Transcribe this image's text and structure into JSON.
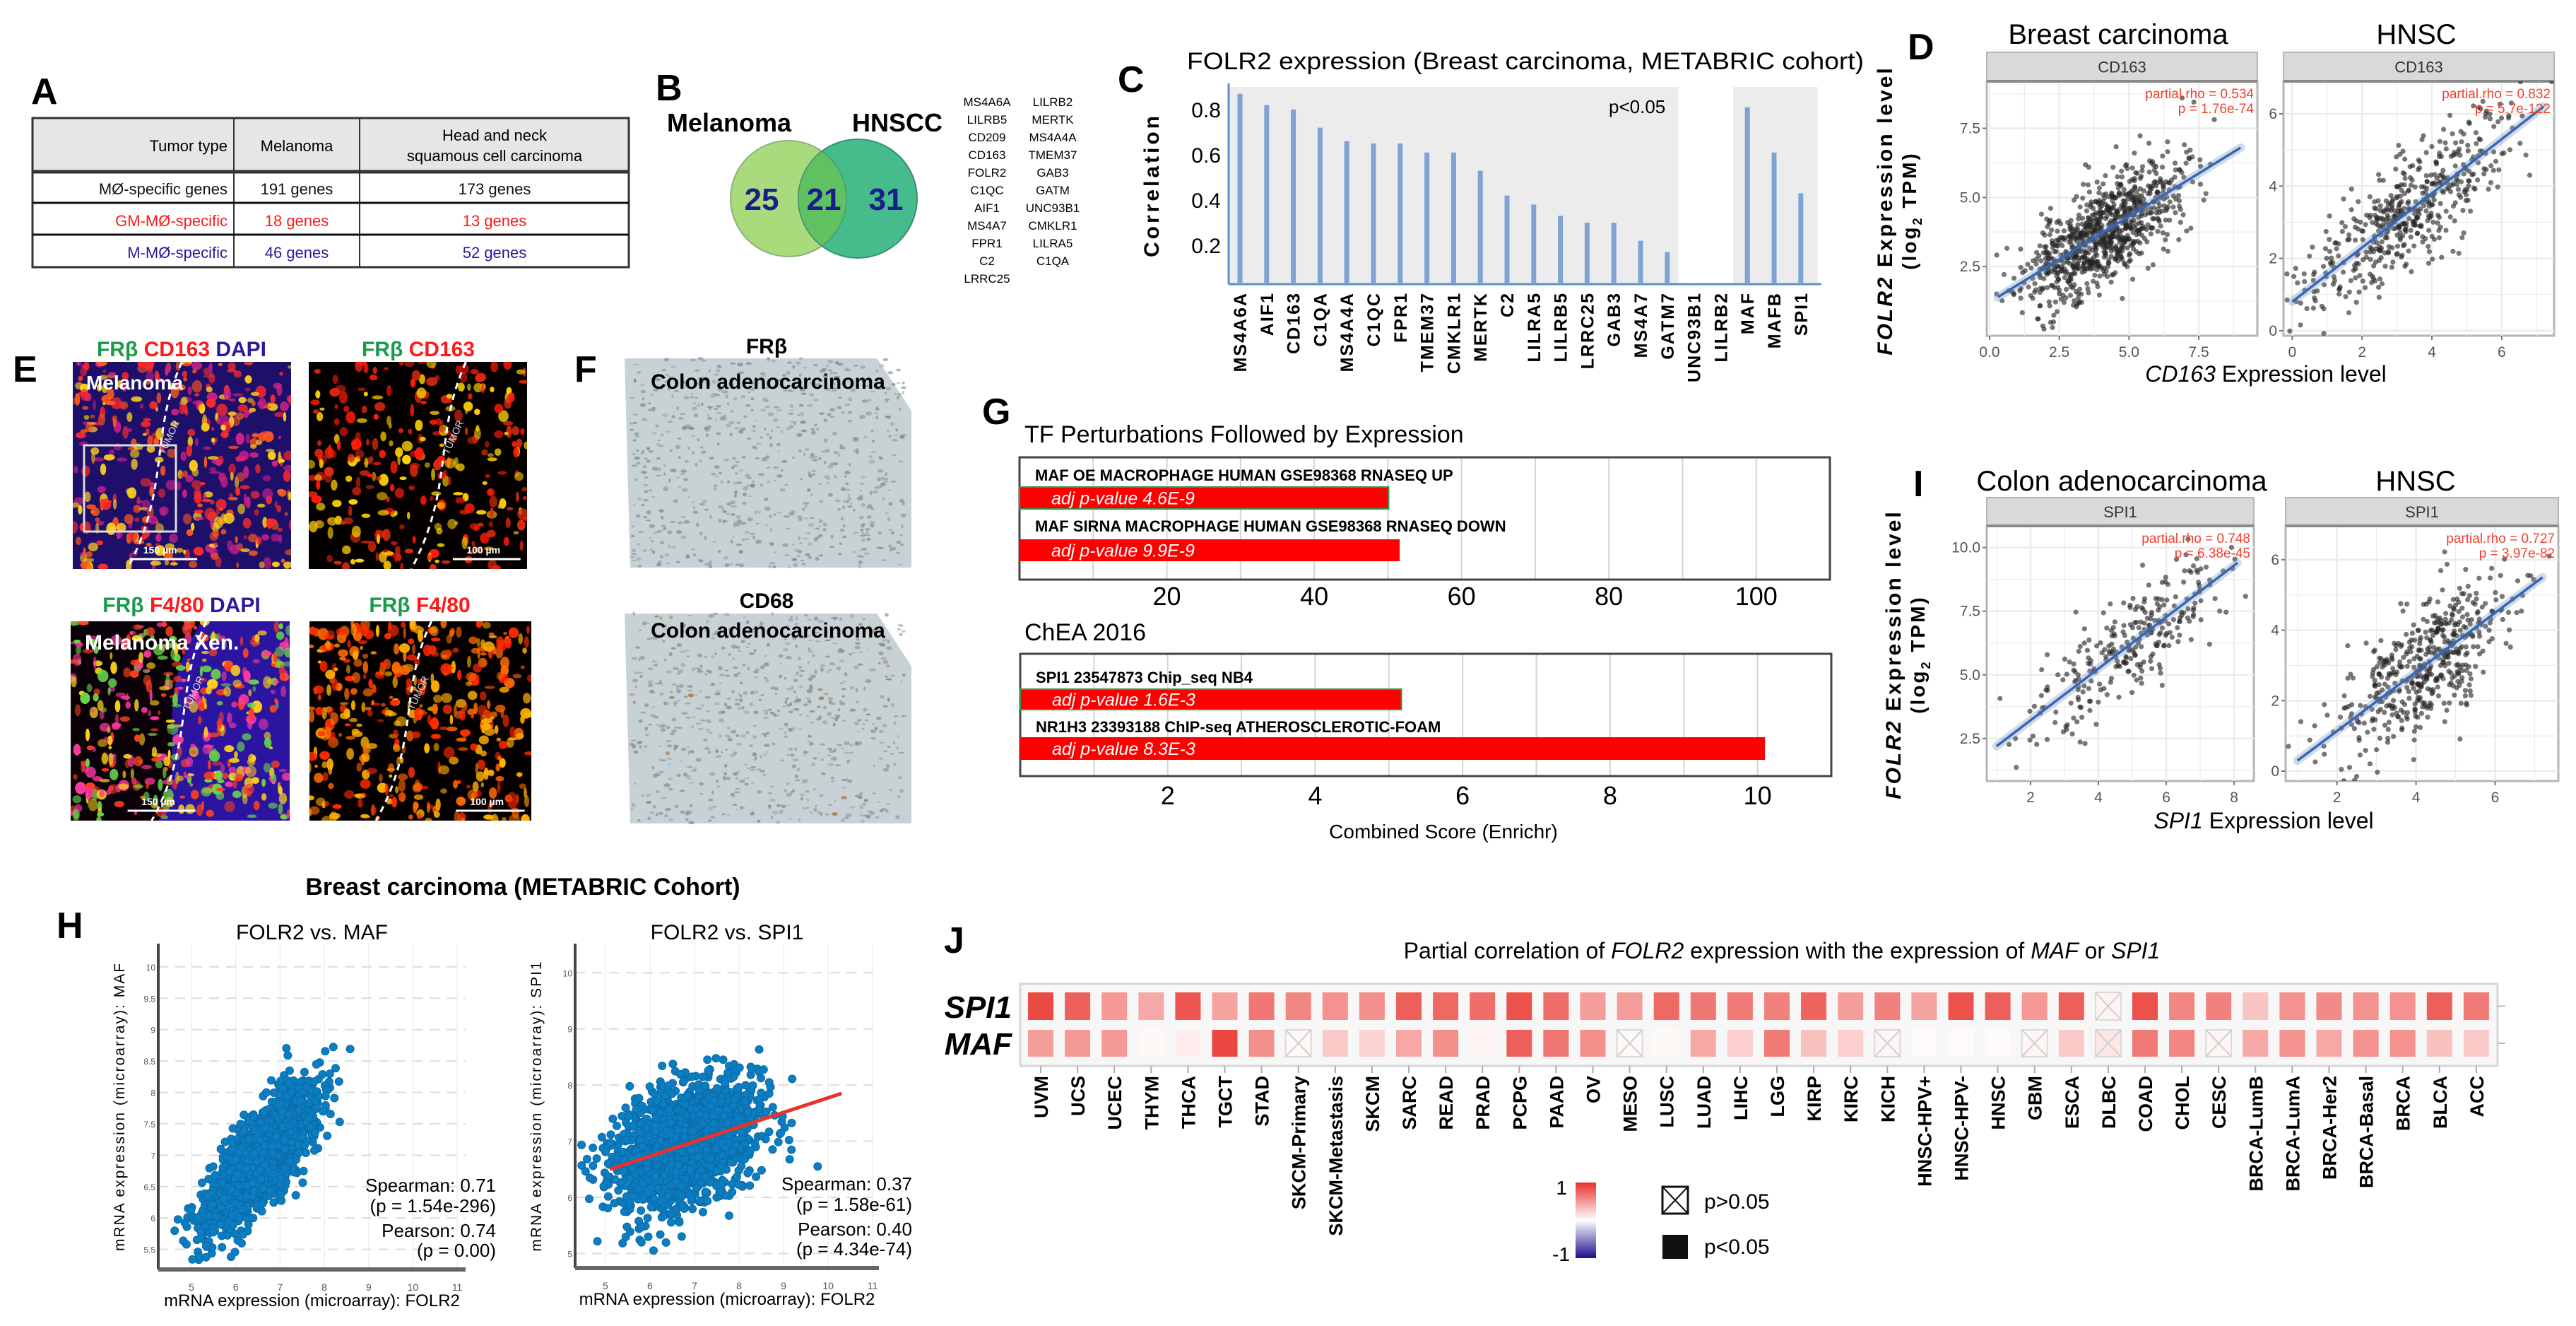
{
  "panel_labels": {
    "A": "A",
    "B": "B",
    "C": "C",
    "D": "D",
    "E": "E",
    "F": "F",
    "G": "G",
    "H": "H",
    "I": "I",
    "J": "J"
  },
  "table_a": {
    "headers": [
      "Tumor type",
      "Melanoma",
      "Head and neck",
      "squamous cell carcinoma"
    ],
    "rows": [
      {
        "label": "MØ-specific genes",
        "melanoma": "191 genes",
        "hnscc": "173 genes",
        "color": "#111111"
      },
      {
        "label": "GM-MØ-specific",
        "melanoma": "18 genes",
        "hnscc": "13 genes",
        "color": "#ff1a1a"
      },
      {
        "label": "M-MØ-specific",
        "melanoma": "46 genes",
        "hnscc": "52 genes",
        "color": "#2a1a99"
      }
    ]
  },
  "venn": {
    "left_label": "Melanoma",
    "right_label": "HNSCC",
    "left_only": "25",
    "shared": "21",
    "right_only": "31",
    "left_color": "#a9da7c",
    "right_color": "#46bb8c",
    "overlap_color": "#5fc160",
    "number_color": "#1c1c8c"
  },
  "shared_genes": {
    "col1": [
      "MS4A6A",
      "LILRB5",
      "CD209",
      "CD163",
      "FOLR2",
      "C1QC",
      "AIF1",
      "MS4A7",
      "FPR1",
      "C2",
      "LRRC25"
    ],
    "col2": [
      "LILRB2",
      "MERTK",
      "MS4A4A",
      "TMEM37",
      "GAB3",
      "GATM",
      "UNC93B1",
      "CMKLR1",
      "LILRA5",
      "C1QA"
    ]
  },
  "panel_e": {
    "row1_left": [
      "FRβ",
      "CD163",
      "DAPI"
    ],
    "row1_right": [
      "FRβ",
      "CD163"
    ],
    "row2_left": [
      "FRβ",
      "F4/80",
      "DAPI"
    ],
    "row2_right": [
      "FRβ",
      "F4/80"
    ],
    "overlay_1": "Melanoma",
    "overlay_3": "Melanoma Xen.",
    "tumor_label": "TUMOR",
    "scale_150": "150 µm",
    "scale_100": "100 µm",
    "colors": {
      "green": "#1a9a4a",
      "red": "#ff1a1a",
      "blue": "#2a1a99"
    }
  },
  "panel_f": {
    "top_marker": "FRβ",
    "top_tissue": "Colon adenocarcinoma",
    "bottom_marker": "CD68",
    "bottom_tissue": "Colon adenocarcinoma"
  },
  "chart_data": [
    {
      "type": "bar",
      "title": "FOLR2 expression (Breast carcinoma, METABRIC cohort)",
      "ylabel": "Correlation",
      "annotation": "p<0.05",
      "categories": [
        "MS4A6A",
        "AIF1",
        "CD163",
        "C1QA",
        "MS4A4A",
        "C1QC",
        "FPR1",
        "TMEM37",
        "CMKLR1",
        "MERTK",
        "C2",
        "LILRA5",
        "LILRB5",
        "LRRC25",
        "GAB3",
        "MS4A7",
        "GATM7",
        "UNC93B1",
        "LILRB2",
        "MAF",
        "MAFB",
        "SPI1"
      ],
      "values": [
        0.87,
        0.82,
        0.8,
        0.72,
        0.66,
        0.65,
        0.65,
        0.61,
        0.61,
        0.53,
        0.42,
        0.38,
        0.33,
        0.3,
        0.3,
        0.22,
        0.17,
        0.03,
        0.03,
        0.81,
        0.61,
        0.43
      ],
      "yticks": [
        0.2,
        0.4,
        0.6,
        0.8
      ],
      "ylim": [
        0.03,
        0.9
      ],
      "shaded_groups": [
        [
          "MS4A6A",
          "GATM7"
        ],
        [
          "MAF",
          "SPI1"
        ]
      ],
      "color": "#7fa3d3"
    },
    {
      "type": "scatter",
      "title": "Breast carcinoma",
      "strip": "CD163",
      "xlabel_italic": "CD163",
      "xlabel_rest": " Expression level",
      "ylabel_italic": "FOLR2",
      "ylabel_rest": " Expression level",
      "ylabel_line2a": "(log",
      "ylabel_sub": "2",
      "ylabel_line2b": " TPM)",
      "xticks": [
        0.0,
        2.5,
        5.0,
        7.5
      ],
      "xtick_labels": [
        "0.0",
        "2.5",
        "5.0",
        "7.5"
      ],
      "yticks": [
        2.5,
        5.0,
        7.5
      ],
      "ytick_labels": [
        "2.5",
        "5.0",
        "7.5"
      ],
      "xlim": [
        -0.1,
        9.6
      ],
      "ylim": [
        0,
        9.2
      ],
      "annotation": [
        "partial.rho = 0.534",
        "p = 1.76e-74"
      ],
      "fit": {
        "x": [
          0.3,
          9.0
        ],
        "y": [
          1.4,
          6.8
        ]
      },
      "cloud": {
        "n": 900,
        "x_mean": 4.0,
        "x_sd": 1.4,
        "slope": 0.62,
        "intercept": 1.21,
        "resid_sd": 0.9
      }
    },
    {
      "type": "scatter",
      "title": "HNSC",
      "strip": "CD163",
      "xticks": [
        0,
        2,
        4,
        6
      ],
      "xtick_labels": [
        "0",
        "2",
        "4",
        "6"
      ],
      "yticks": [
        0,
        2,
        4,
        6
      ],
      "ytick_labels": [
        "0",
        "2",
        "4",
        "6"
      ],
      "xlim": [
        -0.25,
        7.5
      ],
      "ylim": [
        -0.14,
        6.9
      ],
      "annotation": [
        "partial.rho = 0.832",
        "p = 5.7e-122"
      ],
      "fit": {
        "x": [
          0.0,
          7.2
        ],
        "y": [
          0.8,
          6.2
        ]
      },
      "cloud": {
        "n": 500,
        "x_mean": 3.3,
        "x_sd": 1.4,
        "slope": 0.75,
        "intercept": 0.8,
        "resid_sd": 0.75
      }
    },
    {
      "type": "bar",
      "orientation": "horizontal",
      "title": "TF Perturbations Followed by Expression",
      "categories": [
        "MAF OE MACROPHAGE HUMAN GSE98368 RNASEQ UP",
        "MAF SIRNA MACROPHAGE HUMAN GSE98368 RNASEQ DOWN"
      ],
      "values": [
        50.1,
        51.6
      ],
      "bar_labels": [
        "adj p-value 4.6E-9",
        "adj p-value 9.9E-9"
      ],
      "xticks": [
        20,
        40,
        60,
        80,
        100
      ],
      "xtick_labels": [
        "20",
        "40",
        "60",
        "80",
        "100"
      ],
      "xlim": [
        0,
        110
      ],
      "grid_step": 10,
      "color": "#ff0000"
    },
    {
      "type": "bar",
      "orientation": "horizontal",
      "title": "ChEA 2016",
      "categories": [
        "SPI1 23547873 Chip_seq NB4",
        "NR1H3 23393188 ChIP-seq ATHEROSCLEROTIC-FOAM"
      ],
      "values": [
        5.17,
        10.1
      ],
      "bar_labels": [
        "adj p-value 1.6E-3",
        "adj p-value 8.3E-3"
      ],
      "xticks": [
        2,
        4,
        6,
        8,
        10
      ],
      "xtick_labels": [
        "2",
        "4",
        "6",
        "8",
        "10"
      ],
      "xlim": [
        0,
        11
      ],
      "grid_step": 1,
      "color": "#ff0000",
      "xlabel": "Combined Score (Enrichr)"
    },
    {
      "type": "scatter",
      "suptitle": "Breast carcinoma (METABRIC Cohort)",
      "title": "FOLR2 vs. MAF",
      "xlabel": "mRNA expression (microarray): FOLR2",
      "ylabel": "mRNA expression (microarray): MAF",
      "xticks": [
        5,
        6,
        7,
        8,
        9,
        10,
        11
      ],
      "xtick_labels": [
        "5",
        "6",
        "7",
        "8",
        "9",
        "10",
        "11"
      ],
      "yticks": [
        5.5,
        6,
        6.5,
        7,
        7.5,
        8,
        8.5,
        9,
        9.5,
        10
      ],
      "ytick_labels": [
        "5.5",
        "6",
        "6.5",
        "7",
        "7.5",
        "8",
        "8.5",
        "9",
        "9.5",
        "10"
      ],
      "xlim": [
        4.25,
        11.19
      ],
      "ylim": [
        5.18,
        10.37
      ],
      "stats": [
        "Spearman: 0.71",
        "(p = 1.54e-296)",
        "Pearson: 0.74",
        "(p = 0.00)"
      ],
      "cloud": {
        "n": 1900,
        "x_mean": 6.6,
        "x_sd": 0.6,
        "slope": 0.72,
        "intercept": 2.2,
        "resid_sd": 0.35
      }
    },
    {
      "type": "scatter",
      "title": "FOLR2 vs. SPI1",
      "xlabel": "mRNA expression (microarray): FOLR2",
      "ylabel": "mRNA expression (microarray): SPI1",
      "xticks": [
        5,
        6,
        7,
        8,
        9,
        10,
        11
      ],
      "xtick_labels": [
        "5",
        "6",
        "7",
        "8",
        "9",
        "10",
        "11"
      ],
      "yticks": [
        5,
        6,
        7,
        8,
        9,
        10
      ],
      "ytick_labels": [
        "5",
        "6",
        "7",
        "8",
        "9",
        "10"
      ],
      "xlim": [
        4.32,
        11.14
      ],
      "ylim": [
        4.74,
        10.52
      ],
      "stats": [
        "Spearman: 0.37",
        "(p = 1.58e-61)",
        "Pearson: 0.40",
        "(p = 4.34e-74)"
      ],
      "fit": {
        "x": [
          5.1,
          10.3
        ],
        "y": [
          6.5,
          7.85
        ]
      },
      "cloud": {
        "n": 1900,
        "x_mean": 6.8,
        "x_sd": 0.8,
        "slope": 0.26,
        "intercept": 5.17,
        "resid_sd": 0.5
      }
    },
    {
      "type": "scatter",
      "title": "Colon adenocarcinoma",
      "strip": "SPI1",
      "xlabel_italic": "SPI1",
      "xlabel_rest": " Expression level",
      "xticks": [
        2,
        4,
        6,
        8
      ],
      "xtick_labels": [
        "2",
        "4",
        "6",
        "8"
      ],
      "yticks": [
        2.5,
        5.0,
        7.5,
        10.0
      ],
      "ytick_labels": [
        "2.5",
        "5.0",
        "7.5",
        "10.0"
      ],
      "xlim": [
        0.71,
        8.58
      ],
      "ylim": [
        0.83,
        10.85
      ],
      "annotation": [
        "partial.rho = 0.748",
        "p = 6.38e-45"
      ],
      "fit": {
        "x": [
          1.0,
          8.1
        ],
        "y": [
          2.2,
          9.4
        ]
      },
      "cloud": {
        "n": 280,
        "x_mean": 5.0,
        "x_sd": 1.6,
        "slope": 1.01,
        "intercept": 1.19,
        "resid_sd": 1.1
      }
    },
    {
      "type": "scatter",
      "title": "HNSC",
      "strip": "SPI1",
      "xticks": [
        2,
        4,
        6
      ],
      "xtick_labels": [
        "2",
        "4",
        "6"
      ],
      "yticks": [
        0,
        2,
        4,
        6
      ],
      "ytick_labels": [
        "0",
        "2",
        "4",
        "6"
      ],
      "xlim": [
        0.7,
        7.6
      ],
      "ylim": [
        -0.28,
        6.96
      ],
      "annotation": [
        "partial.rho = 0.727",
        "p = 3.97e-82"
      ],
      "fit": {
        "x": [
          1.0,
          7.2
        ],
        "y": [
          0.3,
          5.5
        ]
      },
      "cloud": {
        "n": 500,
        "x_mean": 4.2,
        "x_sd": 1.1,
        "slope": 0.84,
        "intercept": -0.54,
        "resid_sd": 0.85
      }
    },
    {
      "type": "heatmap",
      "title_parts": [
        "Partial correlation of ",
        "FOLR2",
        " expression with the expression of ",
        "MAF",
        " or ",
        "SPI1"
      ],
      "rows": [
        "SPI1",
        "MAF"
      ],
      "columns": [
        "UVM",
        "UCS",
        "UCEC",
        "THYM",
        "THCA",
        "TGCT",
        "STAD",
        "SKCM-Primary",
        "SKCM-Metastasis",
        "SKCM",
        "SARC",
        "READ",
        "PRAD",
        "PCPG",
        "PAAD",
        "OV",
        "MESO",
        "LUSC",
        "LUAD",
        "LIHC",
        "LGG",
        "KIRP",
        "KIRC",
        "KICH",
        "HNSC-HPV+",
        "HNSC-HPV-",
        "HNSC",
        "GBM",
        "ESCA",
        "DLBC",
        "COAD",
        "CHOL",
        "CESC",
        "BRCA-LumB",
        "BRCA-LumA",
        "BRCA-Her2",
        "BRCA-Basal",
        "BRCA",
        "BLCA",
        "ACC"
      ],
      "values": [
        [
          0.75,
          0.65,
          0.42,
          0.36,
          0.7,
          0.38,
          0.56,
          0.5,
          0.45,
          0.46,
          0.66,
          0.62,
          0.6,
          0.72,
          0.6,
          0.4,
          0.4,
          0.62,
          0.56,
          0.55,
          0.52,
          0.64,
          0.4,
          0.52,
          0.38,
          0.72,
          0.66,
          0.42,
          0.66,
          0.05,
          0.72,
          0.5,
          0.52,
          0.24,
          0.45,
          0.48,
          0.45,
          0.45,
          0.66,
          0.55
        ],
        [
          0.4,
          0.42,
          0.42,
          0.03,
          0.08,
          0.76,
          0.46,
          0.03,
          0.22,
          0.18,
          0.36,
          0.46,
          0.05,
          0.66,
          0.56,
          0.46,
          0.03,
          0.03,
          0.36,
          0.2,
          0.55,
          0.26,
          0.2,
          0.04,
          0.02,
          0.02,
          0.02,
          0.04,
          0.22,
          0.1,
          0.55,
          0.5,
          0.04,
          0.36,
          0.45,
          0.36,
          0.45,
          0.45,
          0.26,
          0.22
        ]
      ],
      "not_significant": [
        [
          29
        ],
        [
          7,
          16,
          23,
          27,
          29,
          32
        ]
      ],
      "color_min": "#1c0f8c",
      "color_mid": "#ffffff",
      "color_max": "#e8312a",
      "legend_max": "1",
      "legend_min": "-1",
      "legend_ns": "p>0.05",
      "legend_sig": "p<0.05"
    }
  ]
}
